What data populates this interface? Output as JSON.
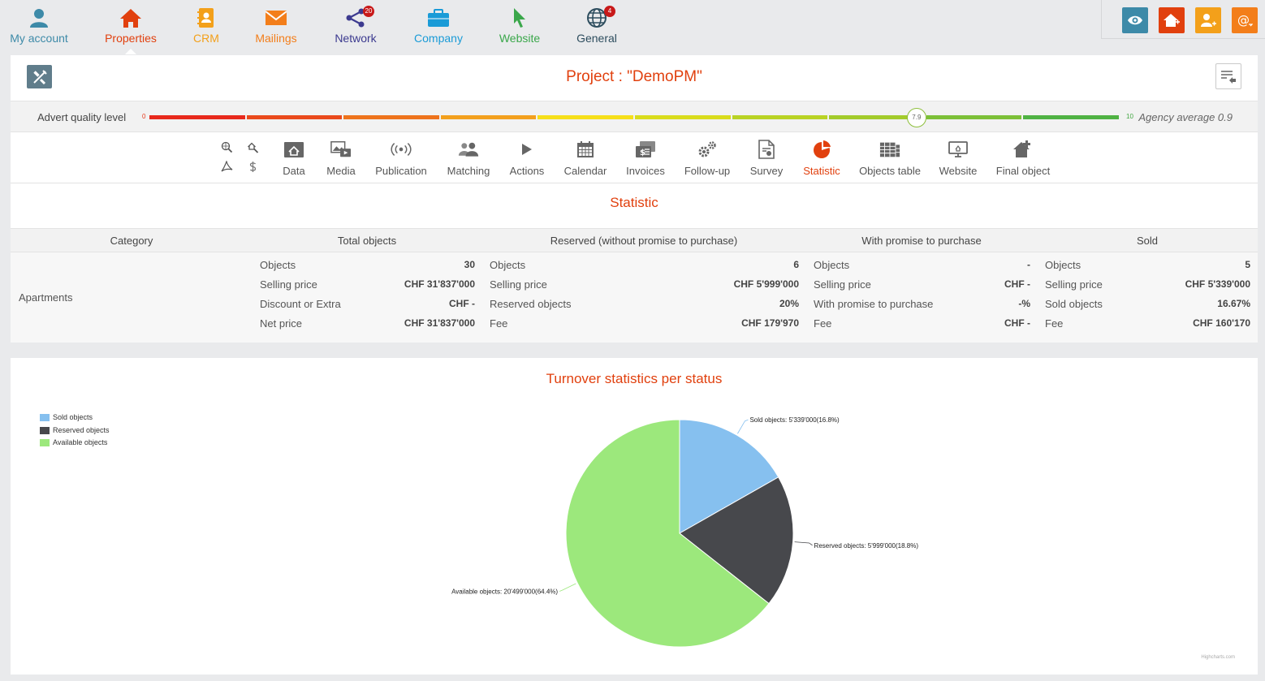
{
  "nav": {
    "items": [
      {
        "label": "My account",
        "icon": "user-icon",
        "color": "#3d8aa8"
      },
      {
        "label": "Properties",
        "icon": "house-icon",
        "color": "#e1400e"
      },
      {
        "label": "CRM",
        "icon": "address-book-icon",
        "color": "#f3a01a"
      },
      {
        "label": "Mailings",
        "icon": "envelope-icon",
        "color": "#f37e1a"
      },
      {
        "label": "Network",
        "icon": "share-icon",
        "color": "#3c3a8f",
        "badge": "20"
      },
      {
        "label": "Company",
        "icon": "briefcase-icon",
        "color": "#1a9bd7"
      },
      {
        "label": "Website",
        "icon": "cursor-icon",
        "color": "#3aa74a"
      },
      {
        "label": "General",
        "icon": "globe-icon",
        "color": "#2d4d5e",
        "badge": "4"
      }
    ]
  },
  "quick_actions": [
    {
      "icon": "eye-icon",
      "color": "#3d8aa8"
    },
    {
      "icon": "add-property-icon",
      "color": "#e1400e"
    },
    {
      "icon": "add-contact-icon",
      "color": "#f3a01a"
    },
    {
      "icon": "new-mail-icon",
      "color": "#f37e1a"
    }
  ],
  "project": {
    "title": "Project : \"DemoPM\""
  },
  "quality": {
    "label": "Advert quality level",
    "min": "0",
    "max": "10",
    "value": "7.9",
    "value_fraction": 0.79,
    "average": "Agency average 0.9",
    "segment_colors": [
      "#e8291c",
      "#ea4a1c",
      "#ee731c",
      "#f3a01d",
      "#f6df1a",
      "#d9dc1c",
      "#b9d324",
      "#a3cb2b",
      "#7cc037",
      "#4fb243"
    ]
  },
  "tabs": [
    {
      "label": "Data",
      "icon": "data-icon"
    },
    {
      "label": "Media",
      "icon": "media-icon"
    },
    {
      "label": "Publication",
      "icon": "publication-icon"
    },
    {
      "label": "Matching",
      "icon": "matching-icon"
    },
    {
      "label": "Actions",
      "icon": "play-icon"
    },
    {
      "label": "Calendar",
      "icon": "calendar-icon"
    },
    {
      "label": "Invoices",
      "icon": "invoices-icon"
    },
    {
      "label": "Follow-up",
      "icon": "gears-icon"
    },
    {
      "label": "Survey",
      "icon": "survey-icon"
    },
    {
      "label": "Statistic",
      "icon": "pie-icon",
      "active": true
    },
    {
      "label": "Objects table",
      "icon": "objects-table-icon"
    },
    {
      "label": "Website",
      "icon": "website-icon"
    },
    {
      "label": "Final object",
      "icon": "final-object-icon"
    }
  ],
  "statistic": {
    "title": "Statistic",
    "headers": [
      "Category",
      "Total objects",
      "Reserved (without promise to purchase)",
      "With promise to purchase",
      "Sold"
    ],
    "category": "Apartments",
    "columns": [
      [
        {
          "k": "Objects",
          "v": "30"
        },
        {
          "k": "Selling price",
          "v": "CHF 31'837'000"
        },
        {
          "k": "Discount or Extra",
          "v": "CHF -"
        },
        {
          "k": "Net price",
          "v": "CHF 31'837'000"
        }
      ],
      [
        {
          "k": "Objects",
          "v": "6"
        },
        {
          "k": "Selling price",
          "v": "CHF 5'999'000"
        },
        {
          "k": "Reserved objects",
          "v": "20%"
        },
        {
          "k": "Fee",
          "v": "CHF 179'970"
        }
      ],
      [
        {
          "k": "Objects",
          "v": "-"
        },
        {
          "k": "Selling price",
          "v": "CHF -"
        },
        {
          "k": "With promise to purchase",
          "v": "-%"
        },
        {
          "k": "Fee",
          "v": "CHF -"
        }
      ],
      [
        {
          "k": "Objects",
          "v": "5"
        },
        {
          "k": "Selling price",
          "v": "CHF 5'339'000"
        },
        {
          "k": "Sold objects",
          "v": "16.67%"
        },
        {
          "k": "Fee",
          "v": "CHF 160'170"
        }
      ]
    ]
  },
  "chart_data": {
    "type": "pie",
    "title": "Turnover statistics per status",
    "legend_position": "top-left",
    "slices": [
      {
        "name": "Sold objects",
        "value": 5339000,
        "percent": 16.8,
        "color": "#86c0ef",
        "label": "Sold objects: 5'339'000(16.8%)"
      },
      {
        "name": "Reserved objects",
        "value": 5999000,
        "percent": 18.8,
        "color": "#47484c",
        "label": "Reserved objects: 5'999'000(18.8%)"
      },
      {
        "name": "Available objects",
        "value": 20499000,
        "percent": 64.4,
        "color": "#9ce87c",
        "label": "Available objects: 20'499'000(64.4%)"
      }
    ],
    "credits": "Highcharts.com"
  }
}
